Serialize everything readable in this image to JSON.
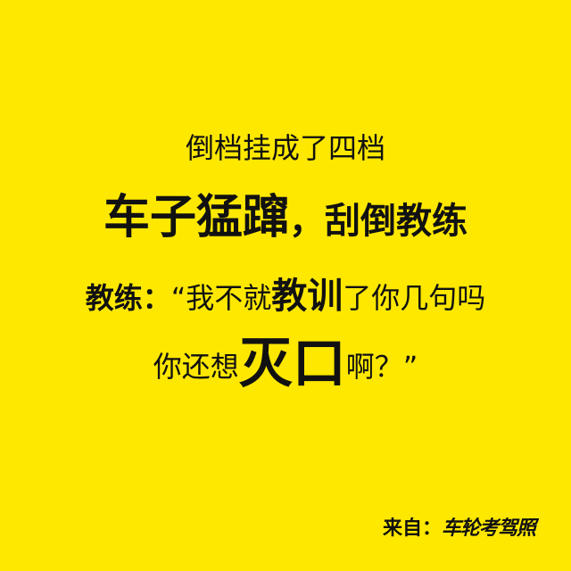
{
  "background_color": "#FFE800",
  "text_color": "#111111",
  "line1": "倒档挂成了四档",
  "line2": {
    "big": "车子猛蹿",
    "sep": "，",
    "rest": "刮倒教练"
  },
  "line3": {
    "speaker": "教练：",
    "open_quote": "“我不就",
    "emph": "教训",
    "rest": "了你几句吗"
  },
  "line4": {
    "pre": "你还想",
    "emph": "灭口",
    "post": "啊？”"
  },
  "source": {
    "label": "来自：",
    "brand": "车轮考驾照"
  }
}
